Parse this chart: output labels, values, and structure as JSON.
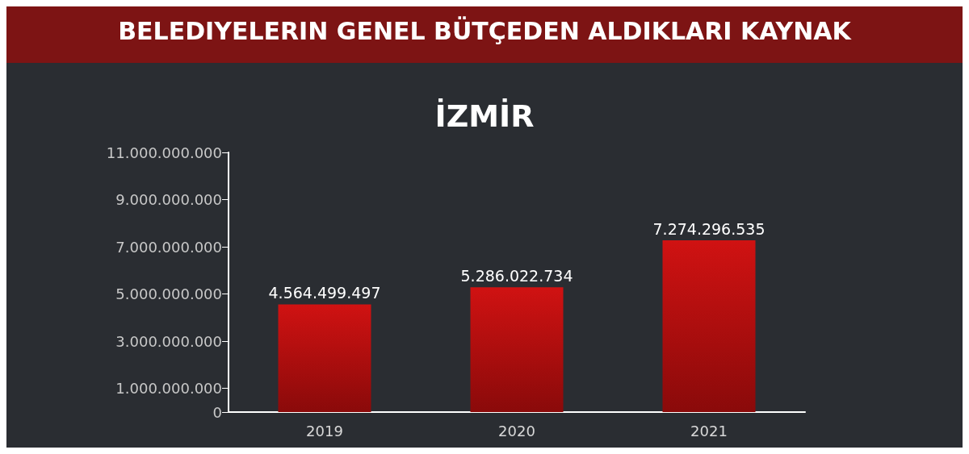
{
  "chart_data": {
    "type": "bar",
    "title": "BELEDIYELERIN GENEL BÜTÇEDEN ALDIKLARI KAYNAK",
    "subtitle": "İZMİR",
    "categories": [
      "2019",
      "2020",
      "2021"
    ],
    "values": [
      4564499497,
      5286022734,
      7274296535
    ],
    "color": "#d01212",
    "ylim": [
      0,
      11000000000
    ],
    "yticks": [
      {
        "value": 0,
        "label": "0"
      },
      {
        "value": 1000000000,
        "label": "1.000.000.000"
      },
      {
        "value": 3000000000,
        "label": "3.000.000.000"
      },
      {
        "value": 5000000000,
        "label": "5.000.000.000"
      },
      {
        "value": 7000000000,
        "label": "7.000.000.000"
      },
      {
        "value": 9000000000,
        "label": "9.000.000.000"
      },
      {
        "value": 11000000000,
        "label": "11.000.000.000"
      }
    ],
    "grid": false,
    "value_labels": [
      "4.564.499.497",
      "5.286.022.734",
      "7.274.296.535"
    ]
  }
}
